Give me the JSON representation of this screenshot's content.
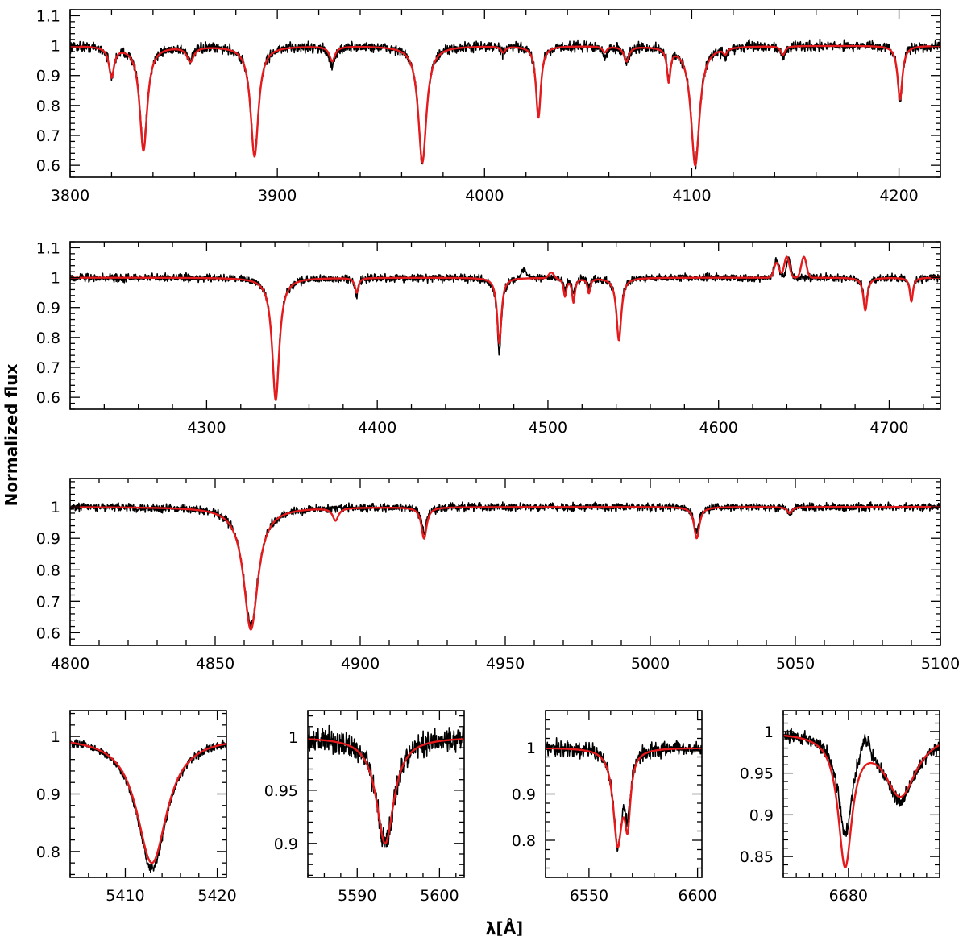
{
  "chart_data": {
    "type": "line",
    "ylabel": "Normalized flux",
    "xlabel": "λ[Å]",
    "series_styles": [
      {
        "key": "observed",
        "color": "#000000"
      },
      {
        "key": "model",
        "color": "#e41a1c"
      }
    ],
    "panels": [
      {
        "id": "p1",
        "xlim": [
          3800,
          4220
        ],
        "ylim": [
          0.56,
          1.12
        ],
        "xticks": [
          3800,
          3900,
          4000,
          4100,
          4200
        ],
        "xminor": 20,
        "yticks": [
          0.6,
          0.7,
          0.8,
          0.9,
          1,
          1.1
        ],
        "yminor": 0.02,
        "noise": 0.012,
        "lines": [
          {
            "c": 3820,
            "w": 1.5,
            "dobs": 0.1,
            "dmod": 0.1
          },
          {
            "c": 3835.4,
            "w": 2.2,
            "dobs": 0.34,
            "dmod": 0.35
          },
          {
            "c": 3858,
            "w": 2.0,
            "dobs": 0.04,
            "dmod": 0.05
          },
          {
            "c": 3889,
            "w": 2.3,
            "dobs": 0.37,
            "dmod": 0.37
          },
          {
            "c": 3926.5,
            "w": 1.6,
            "dobs": 0.07,
            "dmod": 0.05
          },
          {
            "c": 3970,
            "w": 2.4,
            "dobs": 0.39,
            "dmod": 0.39
          },
          {
            "c": 4009,
            "w": 1.2,
            "dobs": 0.02,
            "dmod": 0.02
          },
          {
            "c": 4026,
            "w": 1.4,
            "dobs": 0.23,
            "dmod": 0.24
          },
          {
            "c": 4058,
            "w": 1.2,
            "dobs": 0.04,
            "dmod": 0.02
          },
          {
            "c": 4068.5,
            "w": 1.5,
            "dobs": 0.05,
            "dmod": 0.05
          },
          {
            "c": 4088.9,
            "w": 1.0,
            "dobs": 0.1,
            "dmod": 0.11
          },
          {
            "c": 4101.7,
            "w": 2.5,
            "dobs": 0.39,
            "dmod": 0.4
          },
          {
            "c": 4116.1,
            "w": 1.0,
            "dobs": 0.03,
            "dmod": 0.02
          },
          {
            "c": 4144,
            "w": 1.2,
            "dobs": 0.04,
            "dmod": 0.03
          },
          {
            "c": 4200.5,
            "w": 1.4,
            "dobs": 0.18,
            "dmod": 0.18
          }
        ]
      },
      {
        "id": "p2",
        "xlim": [
          4220,
          4730
        ],
        "ylim": [
          0.56,
          1.12
        ],
        "xticks": [
          4300,
          4400,
          4500,
          4600,
          4700
        ],
        "xminor": 20,
        "yticks": [
          0.6,
          0.7,
          0.8,
          0.9,
          1,
          1.1
        ],
        "yminor": 0.02,
        "noise": 0.009,
        "lines": [
          {
            "c": 4340.5,
            "w": 2.5,
            "dobs": 0.4,
            "dmod": 0.41
          },
          {
            "c": 4387.9,
            "w": 1.2,
            "dobs": 0.06,
            "dmod": 0.05
          },
          {
            "c": 4471.5,
            "w": 1.5,
            "dobs": 0.25,
            "dmod": 0.22
          },
          {
            "c": 4510,
            "w": 1.0,
            "dobs": 0.04,
            "dmod": 0.06
          },
          {
            "c": 4515,
            "w": 1.0,
            "dobs": 0.05,
            "dmod": 0.08
          },
          {
            "c": 4524,
            "w": 1.0,
            "dobs": 0.03,
            "dmod": 0.05
          },
          {
            "c": 4541.6,
            "w": 1.7,
            "dobs": 0.2,
            "dmod": 0.21
          },
          {
            "c": 4686,
            "w": 1.4,
            "dobs": 0.1,
            "dmod": 0.11
          },
          {
            "c": 4713,
            "w": 1.1,
            "dobs": 0.07,
            "dmod": 0.08
          }
        ],
        "emissions_obs": [
          {
            "c": 4486,
            "w": 1.5,
            "h": 0.03
          },
          {
            "c": 4634,
            "w": 1.5,
            "h": 0.06
          },
          {
            "c": 4641,
            "w": 1.2,
            "h": 0.07
          }
        ],
        "emissions_mod": [
          {
            "c": 4502,
            "w": 1.5,
            "h": 0.02
          },
          {
            "c": 4634,
            "w": 1.5,
            "h": 0.05
          },
          {
            "c": 4640,
            "w": 1.5,
            "h": 0.07
          },
          {
            "c": 4650,
            "w": 1.5,
            "h": 0.07
          }
        ]
      },
      {
        "id": "p3",
        "xlim": [
          4800,
          5100
        ],
        "ylim": [
          0.56,
          1.09
        ],
        "xticks": [
          4800,
          4850,
          4900,
          4950,
          5000,
          5050,
          5100
        ],
        "xminor": 10,
        "yticks": [
          0.6,
          0.7,
          0.8,
          0.9,
          1
        ],
        "yminor": 0.02,
        "noise": 0.009,
        "lines": [
          {
            "c": 4862.3,
            "w": 3.0,
            "dobs": 0.38,
            "dmod": 0.39
          },
          {
            "c": 4891.5,
            "w": 1.2,
            "dobs": 0.0,
            "dmod": 0.04
          },
          {
            "c": 4922,
            "w": 1.1,
            "dobs": 0.08,
            "dmod": 0.1
          },
          {
            "c": 5016,
            "w": 1.1,
            "dobs": 0.08,
            "dmod": 0.1
          },
          {
            "c": 5048,
            "w": 1.0,
            "dobs": 0.02,
            "dmod": 0.02
          }
        ]
      },
      {
        "id": "p4",
        "xlim": [
          5404,
          5421
        ],
        "ylim": [
          0.755,
          1.045
        ],
        "xticks": [
          5410,
          5420
        ],
        "xminor": 2,
        "yticks": [
          0.8,
          0.9,
          1
        ],
        "yminor": 0.02,
        "noise": 0.005,
        "lines": [
          {
            "c": 5412.9,
            "w": 2.0,
            "dobs": 0.23,
            "dmod": 0.22
          }
        ]
      },
      {
        "id": "p5",
        "xlim": [
          5584,
          5603
        ],
        "ylim": [
          0.868,
          1.025
        ],
        "xticks": [
          5590,
          5600
        ],
        "xminor": 2,
        "yticks": [
          0.9,
          0.95,
          1
        ],
        "yminor": 0.01,
        "noise": 0.008,
        "lines": [
          {
            "c": 5593.4,
            "w": 1.3,
            "dobs": 0.1,
            "dmod": 0.1
          }
        ]
      },
      {
        "id": "p6",
        "xlim": [
          6530,
          6602
        ],
        "ylim": [
          0.72,
          1.08
        ],
        "xticks": [
          6550,
          6600
        ],
        "xminor": 10,
        "yticks": [
          0.8,
          0.9,
          1
        ],
        "yminor": 0.02,
        "noise": 0.012,
        "lines": [
          {
            "c": 6563.2,
            "w": 2.5,
            "dobs": 0.2,
            "dmod": 0.2
          },
          {
            "c": 6567.8,
            "w": 1.6,
            "dobs": 0.11,
            "dmod": 0.14
          }
        ]
      },
      {
        "id": "p7",
        "xlim": [
          6670,
          6694
        ],
        "ylim": [
          0.825,
          1.025
        ],
        "xticks": [
          6680
        ],
        "xminor": 2,
        "yticks": [
          0.85,
          0.9,
          0.95,
          1
        ],
        "yminor": 0.01,
        "noise": 0.006,
        "lines": [
          {
            "c": 6679.5,
            "w": 1.3,
            "dobs": 0.115,
            "dmod": 0.155
          },
          {
            "c": 6688,
            "w": 3.0,
            "dobs": 0.08,
            "dmod": 0.075
          }
        ],
        "emissions_obs": [
          {
            "c": 6682.5,
            "w": 0.8,
            "h": 0.025
          }
        ]
      }
    ]
  }
}
